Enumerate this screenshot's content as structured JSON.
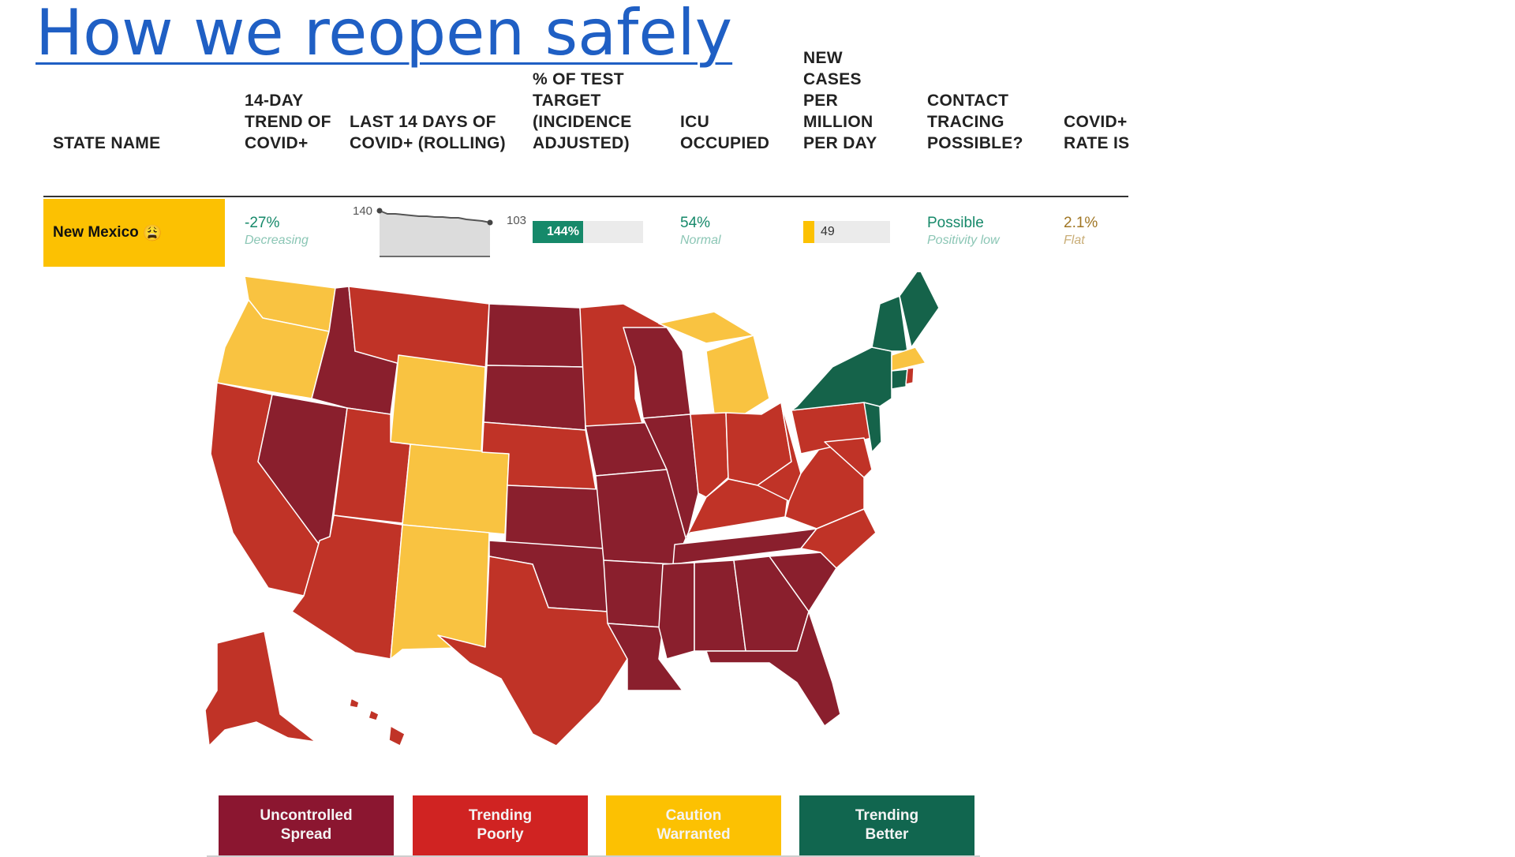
{
  "slide": {
    "title": "How we reopen safely"
  },
  "table": {
    "headers": {
      "state_name": "STATE NAME",
      "trend": "14-DAY TREND OF COVID+",
      "last14": "LAST 14 DAYS OF COVID+ (ROLLING)",
      "test_target": "% OF TEST TARGET (INCIDENCE ADJUSTED)",
      "icu": "ICU OCCUPIED",
      "new_cases": "NEW CASES PER MILLION PER DAY",
      "contact_tracing": "CONTACT TRACING POSSIBLE?",
      "covid_rate": "COVID+ RATE IS"
    },
    "row": {
      "state": "New Mexico",
      "state_icon": "worried-face-icon",
      "trend_value": "-27%",
      "trend_label": "Decreasing",
      "spark_start": "140",
      "spark_end": "103",
      "test_target_value": "144%",
      "test_target_fraction": 1.44,
      "icu_value": "54%",
      "icu_label": "Normal",
      "new_cases_value": "49",
      "contact_value": "Possible",
      "contact_label": "Positivity low",
      "rate_value": "2.1%",
      "rate_label": "Flat"
    }
  },
  "map": {
    "colors": {
      "uncontrolled": "#8a1f2d",
      "trending_poorly": "#c03327",
      "caution": "#f9c341",
      "trending_better": "#15634a"
    }
  },
  "legend": [
    {
      "line1": "Uncontrolled",
      "line2": "Spread",
      "color": "#8b1630"
    },
    {
      "line1": "Trending",
      "line2": "Poorly",
      "color": "#d02322"
    },
    {
      "line1": "Caution",
      "line2": "Warranted",
      "color": "#fcc102"
    },
    {
      "line1": "Trending",
      "line2": "Better",
      "color": "#11664f"
    }
  ]
}
